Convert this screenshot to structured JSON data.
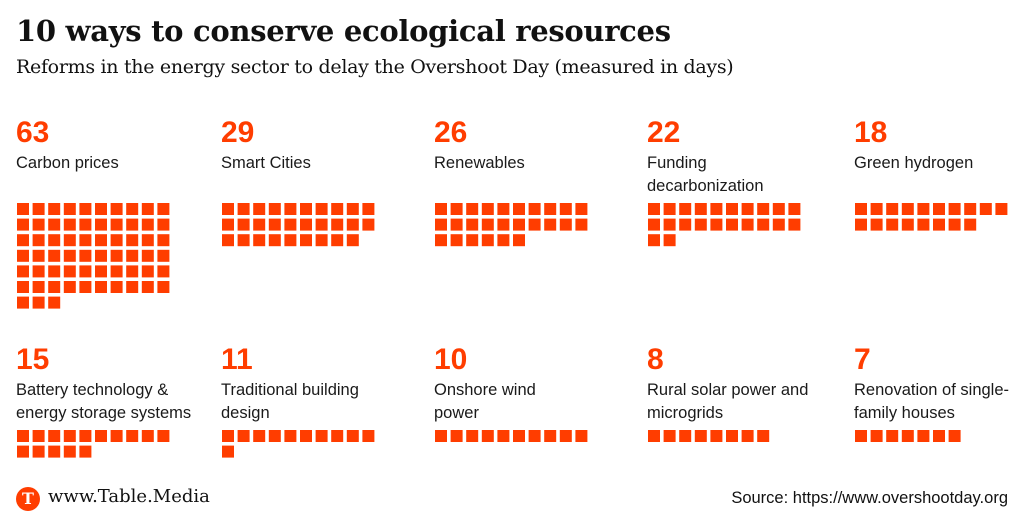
{
  "header": {
    "title": "10 ways to conserve ecological resources",
    "subtitle": "Reforms in the energy sector to delay the Overshoot Day (measured in days)"
  },
  "colors": {
    "accent": "#FF3D00",
    "text": "#1a1a1a"
  },
  "chart_data": {
    "type": "waffle",
    "title": "10 ways to conserve ecological resources",
    "subtitle": "Reforms in the energy sector to delay the Overshoot Day (measured in days)",
    "unit": "days",
    "squares_per_row": 10,
    "items": [
      {
        "value": "63",
        "count": 63,
        "label": "Carbon prices"
      },
      {
        "value": "29",
        "count": 29,
        "label": "Smart Cities"
      },
      {
        "value": "26",
        "count": 26,
        "label": "Renewables"
      },
      {
        "value": "22",
        "count": 22,
        "label": "Funding decarbonization"
      },
      {
        "value": "18",
        "count": 18,
        "label": "Green hydrogen"
      },
      {
        "value": "15",
        "count": 15,
        "label": "Battery technology & energy storage systems"
      },
      {
        "value": "11",
        "count": 11,
        "label": "Traditional building design"
      },
      {
        "value": "10",
        "count": 10,
        "label": "Onshore wind power"
      },
      {
        "value": "8",
        "count": 8,
        "label": "Rural solar power and microgrids"
      },
      {
        "value": "7",
        "count": 7,
        "label": "Renovation of single-family houses"
      }
    ]
  },
  "footer": {
    "logo_letter": "T",
    "site": "www.Table.Media",
    "source": "Source: https://www.overshootday.org"
  }
}
